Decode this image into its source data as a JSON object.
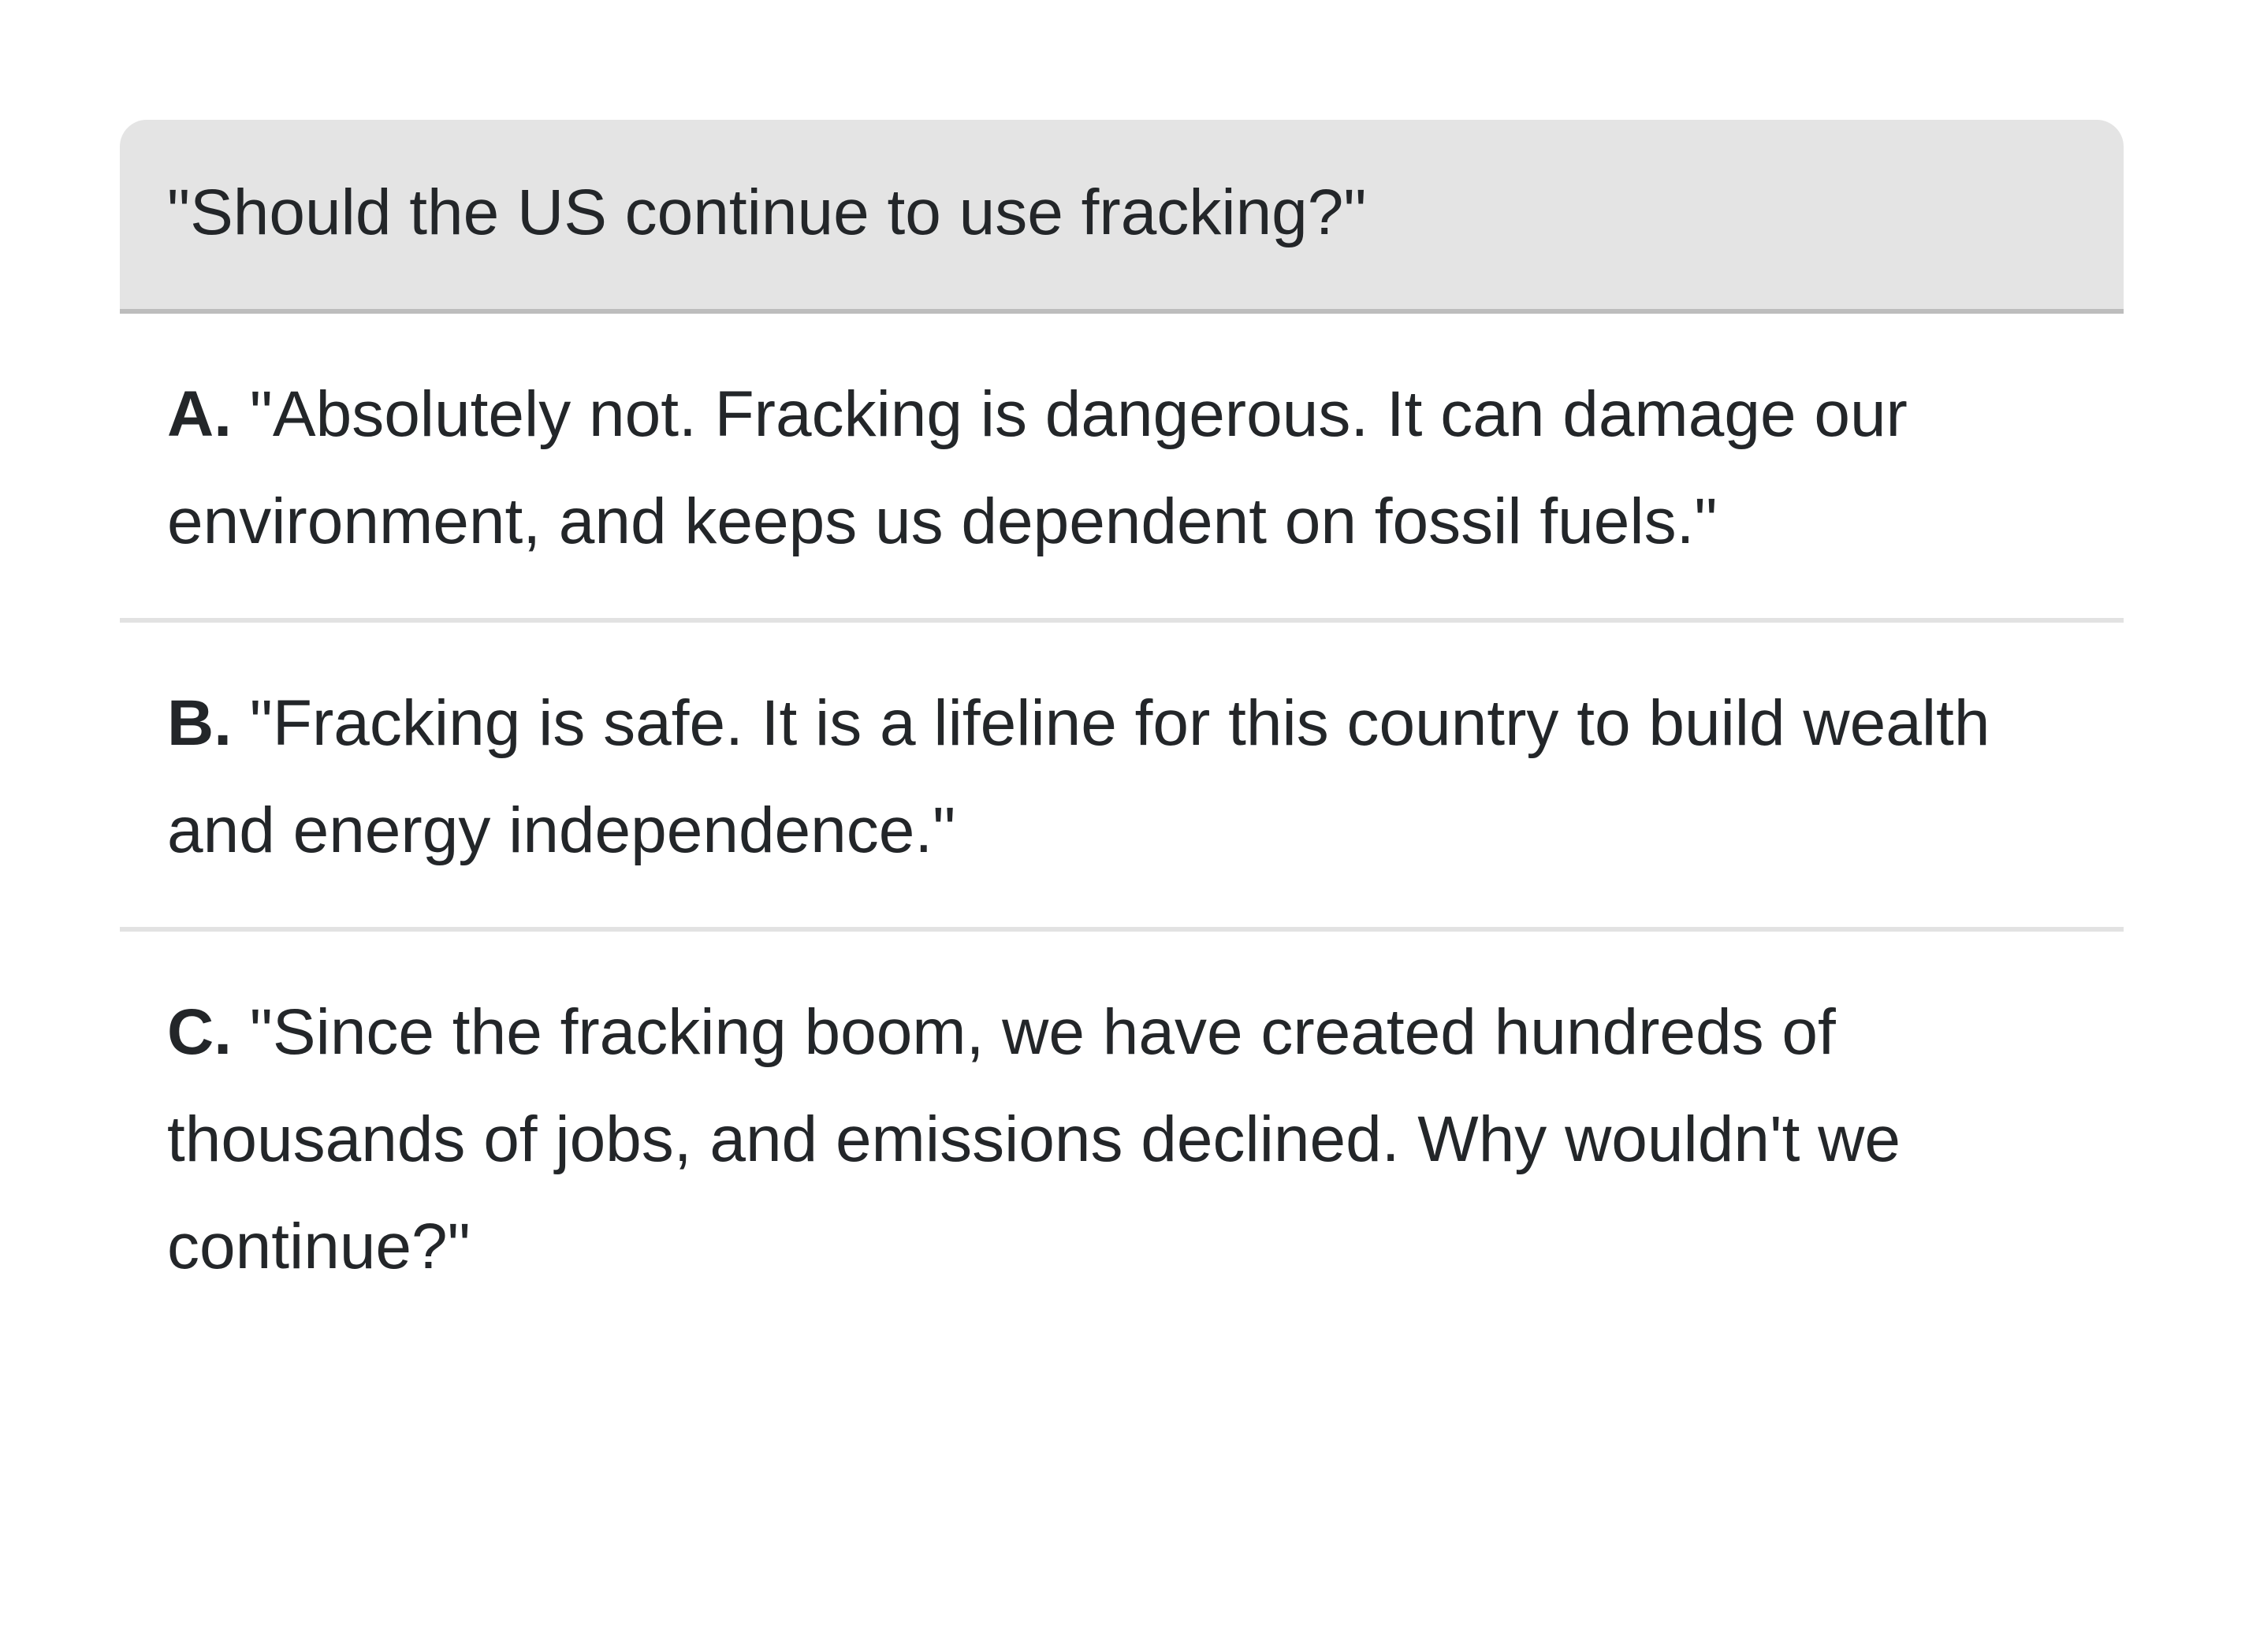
{
  "question": {
    "text": "\"Should the US continue to use fracking?\""
  },
  "options": [
    {
      "letter": "A.",
      "text": "\"Absolutely not. Fracking is dangerous. It can damage our environment, and keeps us dependent on fossil fuels.\""
    },
    {
      "letter": "B.",
      "text": "\"Fracking is safe. It is a lifeline for this country to build wealth and energy independence.\""
    },
    {
      "letter": "C.",
      "text": "\"Since the fracking boom, we have created hundreds of thousands of jobs, and emissions declined. Why wouldn't we continue?\""
    }
  ],
  "colors": {
    "header_background": "#e4e4e4",
    "header_border": "#bdbdbd",
    "divider": "#e2e2e2",
    "text": "#232629"
  }
}
